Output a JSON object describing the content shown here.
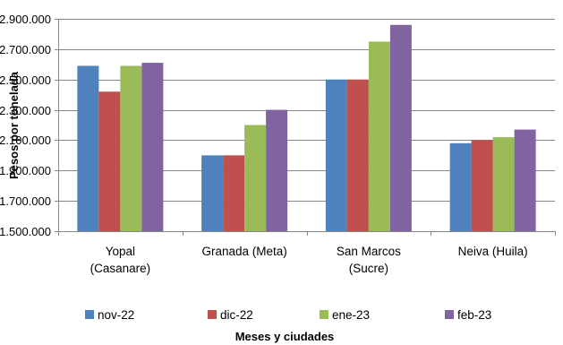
{
  "chart_data": {
    "type": "bar",
    "categories": [
      [
        "Yopal",
        "(Casanare)"
      ],
      [
        "Granada (Meta)"
      ],
      [
        "San Marcos",
        "(Sucre)"
      ],
      [
        "Neiva (Huila)"
      ]
    ],
    "series": [
      {
        "name": "nov-22",
        "color": "#4F81BD",
        "values": [
          2590000,
          2000000,
          2500000,
          2080000
        ]
      },
      {
        "name": "dic-22",
        "color": "#C0504D",
        "values": [
          2420000,
          2000000,
          2500000,
          2100000
        ]
      },
      {
        "name": "ene-23",
        "color": "#9BBB59",
        "values": [
          2590000,
          2200000,
          2750000,
          2120000
        ]
      },
      {
        "name": "feb-23",
        "color": "#8064A2",
        "values": [
          2610000,
          2300000,
          2860000,
          2170000
        ]
      }
    ],
    "yticks": [
      "1.500.000",
      "1.700.000",
      "1.900.000",
      "2.100.000",
      "2.300.000",
      "2.500.000",
      "2.700.000",
      "2.900.000"
    ],
    "ylim": [
      1500000,
      2900000
    ],
    "ylabel": "Pesos por tonelada",
    "xlabel": "Meses y ciudades",
    "grid": true,
    "legend_position": "bottom"
  }
}
